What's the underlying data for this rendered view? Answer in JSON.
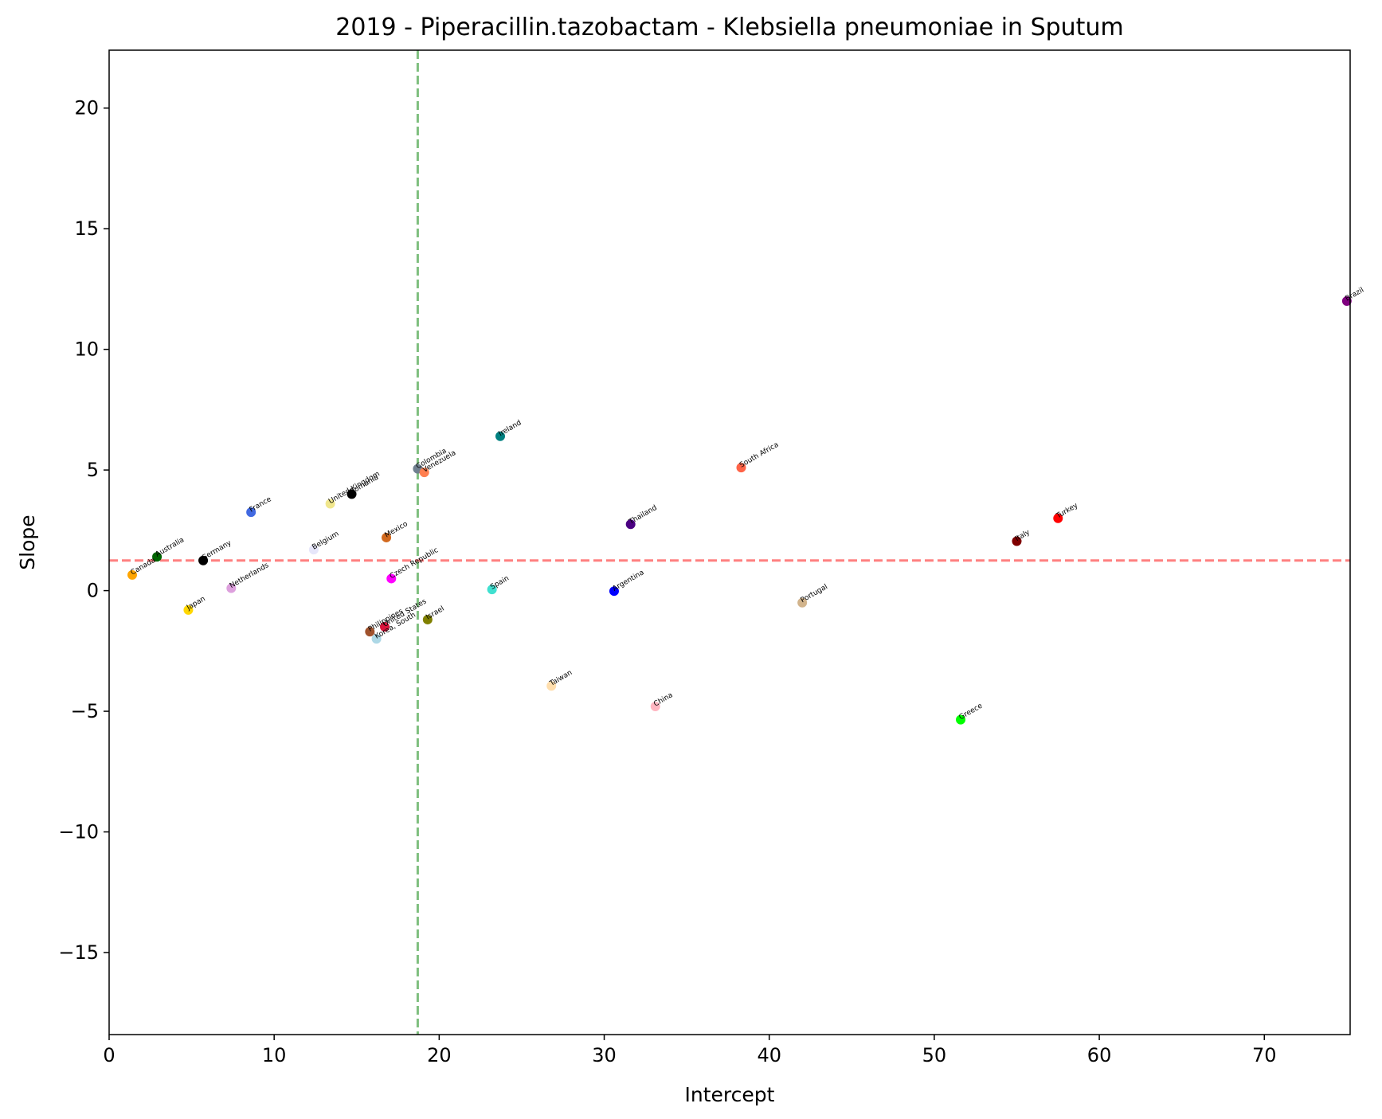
{
  "chart_data": {
    "type": "scatter",
    "title": "2019 - Piperacillin.tazobactam - Klebsiella pneumoniae in Sputum",
    "xlabel": "Intercept",
    "ylabel": "Slope",
    "xlim": [
      0,
      75.2
    ],
    "ylim": [
      -18.4,
      22.4
    ],
    "xticks": [
      0,
      10,
      20,
      30,
      40,
      50,
      60,
      70
    ],
    "yticks": [
      -15,
      -10,
      -5,
      0,
      5,
      10,
      15,
      20
    ],
    "xtick_labels": [
      "0",
      "10",
      "20",
      "30",
      "40",
      "50",
      "60",
      "70"
    ],
    "ytick_labels": [
      "−15",
      "−10",
      "−5",
      "0",
      "5",
      "10",
      "15",
      "20"
    ],
    "grid": false,
    "reference_lines": [
      {
        "orientation": "vertical",
        "x": 18.7,
        "color": "#7fbf7f",
        "style": "dashed"
      },
      {
        "orientation": "horizontal",
        "y": 1.25,
        "color": "#ff8080",
        "style": "dashed"
      }
    ],
    "points": [
      {
        "label": "Canada",
        "x": 1.4,
        "y": 0.65,
        "color": "#ffa500"
      },
      {
        "label": "Australia",
        "x": 2.9,
        "y": 1.4,
        "color": "#006400"
      },
      {
        "label": "Germany",
        "x": 5.7,
        "y": 1.25,
        "color": "#000000"
      },
      {
        "label": "Japan",
        "x": 4.8,
        "y": -0.8,
        "color": "#ffd700"
      },
      {
        "label": "Netherlands",
        "x": 7.4,
        "y": 0.1,
        "color": "#dda0dd"
      },
      {
        "label": "France",
        "x": 8.6,
        "y": 3.25,
        "color": "#4169e1"
      },
      {
        "label": "Belgium",
        "x": 12.4,
        "y": 1.7,
        "color": "#e6e6fa"
      },
      {
        "label": "United Kingdom",
        "x": 13.4,
        "y": 3.6,
        "color": "#f0e68c"
      },
      {
        "label": "Romania",
        "x": 14.7,
        "y": 4.0,
        "color": "#000000"
      },
      {
        "label": "Mexico",
        "x": 16.8,
        "y": 2.2,
        "color": "#d2691e"
      },
      {
        "label": "Czech Republic",
        "x": 17.1,
        "y": 0.5,
        "color": "#ff00ff"
      },
      {
        "label": "Philippines",
        "x": 15.8,
        "y": -1.7,
        "color": "#a0522d"
      },
      {
        "label": "United States",
        "x": 16.7,
        "y": -1.5,
        "color": "#dc143c"
      },
      {
        "label": "Korea, South",
        "x": 16.2,
        "y": -2.0,
        "color": "#add8e6"
      },
      {
        "label": "Colombia",
        "x": 18.7,
        "y": 5.05,
        "color": "#708090"
      },
      {
        "label": "Venezuela",
        "x": 19.1,
        "y": 4.9,
        "color": "#ff7f50"
      },
      {
        "label": "Israel",
        "x": 19.3,
        "y": -1.2,
        "color": "#808000"
      },
      {
        "label": "Ireland",
        "x": 23.7,
        "y": 6.4,
        "color": "#008080"
      },
      {
        "label": "Spain",
        "x": 23.2,
        "y": 0.05,
        "color": "#40e0d0"
      },
      {
        "label": "Taiwan",
        "x": 26.8,
        "y": -3.95,
        "color": "#ffdead"
      },
      {
        "label": "Argentina",
        "x": 30.6,
        "y": -0.02,
        "color": "#0000ff"
      },
      {
        "label": "Thailand",
        "x": 31.6,
        "y": 2.75,
        "color": "#4b0082"
      },
      {
        "label": "China",
        "x": 33.1,
        "y": -4.8,
        "color": "#ffb6c1"
      },
      {
        "label": "South Africa",
        "x": 38.3,
        "y": 5.1,
        "color": "#ff6347"
      },
      {
        "label": "Portugal",
        "x": 42.0,
        "y": -0.5,
        "color": "#d2b48c"
      },
      {
        "label": "Greece",
        "x": 51.6,
        "y": -5.35,
        "color": "#00ff00"
      },
      {
        "label": "Italy",
        "x": 55.0,
        "y": 2.05,
        "color": "#800000"
      },
      {
        "label": "Turkey",
        "x": 57.5,
        "y": 3.0,
        "color": "#ff0000"
      },
      {
        "label": "Brazil",
        "x": 75.0,
        "y": 12.0,
        "color": "#800080"
      }
    ]
  }
}
